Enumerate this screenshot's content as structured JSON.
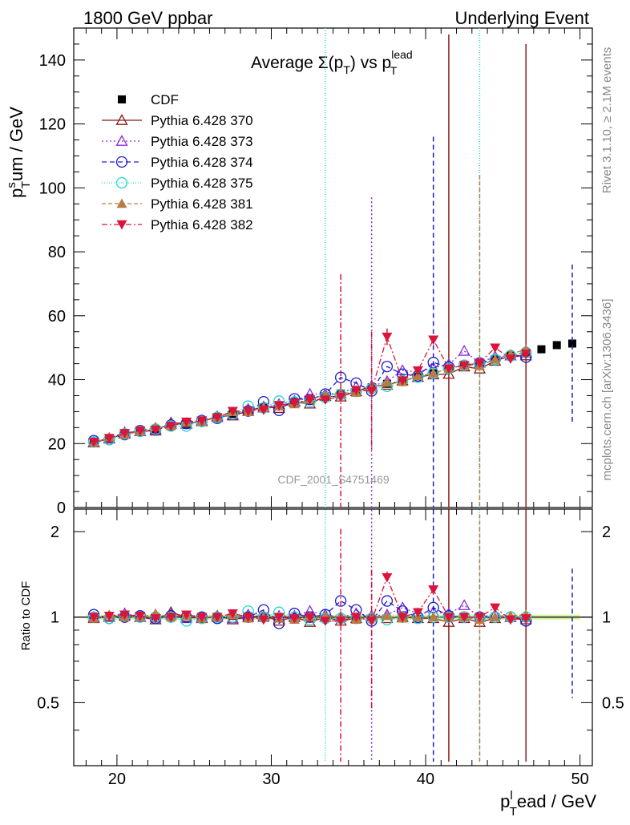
{
  "header": {
    "left": "1800 GeV ppbar",
    "right": "Underlying Event",
    "title_main": "Average Σ(p",
    "title_sub": "T",
    "title_mid": ") vs p",
    "title_sup": "lead",
    "title_sub2": "T"
  },
  "side": {
    "rivet": "Rivet 3.1.10, ≥ 2.1M events",
    "mcplots": "mcplots.cern.ch [arXiv:1306.3436]"
  },
  "watermark": "CDF_2001_S4751469",
  "axes": {
    "ylabel_main_base": "p",
    "ylabel_main_sup": "s",
    "ylabel_main_sub": "T",
    "ylabel_main_rest": "um / GeV",
    "ylabel_ratio": "Ratio to CDF",
    "xlabel_base": "p",
    "xlabel_sup": "l",
    "xlabel_sub": "T",
    "xlabel_rest": "ead / GeV"
  },
  "colors": {
    "cdf": "#000000",
    "p370": "#8b1a1a",
    "p373": "#8a2be2",
    "p374": "#1c1ccc",
    "p375": "#20d8c8",
    "p381": "#b87d44",
    "p382": "#dc143c",
    "band": "#c8f078"
  },
  "chart_data": {
    "type": "scatter",
    "main": {
      "xlim": [
        17.2,
        50.8
      ],
      "ylim": [
        0,
        150
      ],
      "x_ticks": [
        20,
        30,
        40,
        50
      ],
      "y_ticks": [
        0,
        20,
        40,
        60,
        80,
        100,
        120,
        140
      ]
    },
    "ratio": {
      "ylim": [
        0.3,
        2.4
      ],
      "y_ticks": [
        0.5,
        1,
        2
      ],
      "y_tick_labels": [
        "0.5",
        "1",
        "2"
      ]
    },
    "x": [
      18.5,
      19.5,
      20.5,
      21.5,
      22.5,
      23.5,
      24.5,
      25.5,
      26.5,
      27.5,
      28.5,
      29.5,
      30.5,
      31.5,
      32.5,
      33.5,
      34.5,
      35.5,
      36.5,
      37.5,
      38.5,
      39.5,
      40.5,
      41.5,
      42.5,
      43.5,
      44.5,
      45.5,
      46.5,
      47.5,
      48.5,
      49.5
    ],
    "series": [
      {
        "name": "CDF",
        "key": "cdf",
        "style": "data",
        "values": [
          20.5,
          21.5,
          22.8,
          23.8,
          24.5,
          25.5,
          26.3,
          27.2,
          28.2,
          29.3,
          30.2,
          31.2,
          32.0,
          33.0,
          33.8,
          34.8,
          35.7,
          36.7,
          37.6,
          38.7,
          39.7,
          41.2,
          42.0,
          43.5,
          44.5,
          45.2,
          46.3,
          47.5,
          48.5,
          49.5,
          50.8,
          51.3
        ]
      },
      {
        "name": "Pythia 6.428 370",
        "key": "p370",
        "marker": "triangle-open",
        "dash": "",
        "ratio": [
          0.99,
          1.0,
          1.01,
          1.0,
          0.98,
          1.04,
          1.0,
          0.99,
          1.01,
          0.98,
          1.0,
          1.01,
          0.97,
          1.0,
          0.96,
          1.0,
          0.97,
          0.99,
          1.01,
          0.99,
          1.0,
          0.99,
          0.99,
          0.96,
          0.99,
          0.96,
          0.99,
          1.0,
          0.98
        ],
        "bars": [
          [
            41.5,
            148
          ],
          [
            46.5,
            145
          ]
        ]
      },
      {
        "name": "Pythia 6.428 373",
        "key": "p373",
        "marker": "triangle-open",
        "dash": "2,3",
        "ratio": [
          1.0,
          1.01,
          1.03,
          1.0,
          1.0,
          1.02,
          0.99,
          1.0,
          1.0,
          0.99,
          1.02,
          1.0,
          1.01,
          1.01,
          1.05,
          1.02,
          1.0,
          1.03,
          1.01,
          1.02,
          1.08,
          1.03,
          1.04,
          1.03,
          1.1,
          1.0,
          1.02,
          1.0,
          1.0
        ],
        "bars": [
          [
            36.5,
            97
          ]
        ]
      },
      {
        "name": "Pythia 6.428 374",
        "key": "p374",
        "marker": "circle-open",
        "dash": "6,4",
        "ratio": [
          1.02,
          0.99,
          1.0,
          1.01,
          0.99,
          1.01,
          1.0,
          1.0,
          0.99,
          1.0,
          1.0,
          1.06,
          0.95,
          1.03,
          1.0,
          1.02,
          1.14,
          1.06,
          0.97,
          1.14,
          1.05,
          1.0,
          1.08,
          1.01,
          1.0,
          1.0,
          1.0,
          1.0,
          0.97
        ],
        "bars": [
          [
            40.5,
            116
          ],
          [
            49.5,
            76
          ]
        ]
      },
      {
        "name": "Pythia 6.428 375",
        "key": "p375",
        "marker": "circle-open",
        "dash": "1,2",
        "ratio": [
          1.0,
          0.99,
          1.01,
          1.0,
          1.0,
          1.0,
          0.97,
          0.99,
          1.0,
          1.0,
          1.05,
          1.0,
          1.04,
          1.0,
          0.98,
          0.99,
          0.99,
          0.99,
          0.99,
          0.98,
          1.0,
          0.99,
          1.0,
          1.0,
          1.0,
          0.99,
          1.0,
          1.0,
          1.0
        ],
        "bars": [
          [
            33.5,
            150
          ],
          [
            43.5,
            150
          ]
        ]
      },
      {
        "name": "Pythia 6.428 381",
        "key": "p381",
        "marker": "triangle-filled",
        "dash": "5,3",
        "ratio": [
          0.99,
          1.02,
          1.0,
          1.0,
          1.03,
          1.0,
          1.01,
          0.99,
          1.0,
          1.02,
          0.99,
          1.0,
          0.99,
          0.98,
          1.0,
          1.01,
          1.0,
          0.98,
          1.0,
          1.01,
          0.99,
          1.0,
          1.0,
          1.0,
          1.0,
          0.98,
          1.0,
          1.01,
          1.02
        ],
        "bars": [
          [
            43.5,
            104
          ]
        ]
      },
      {
        "name": "Pythia 6.428 382",
        "key": "p382",
        "marker": "triangle-down-filled",
        "dash": "7,3,2,3",
        "ratio": [
          1.0,
          1.01,
          1.02,
          1.01,
          0.99,
          1.0,
          1.02,
          1.0,
          1.0,
          1.03,
          1.0,
          0.98,
          1.0,
          0.99,
          1.0,
          0.97,
          0.97,
          1.0,
          0.97,
          1.38,
          1.0,
          1.04,
          1.25,
          1.0,
          1.0,
          1.0,
          1.08,
          0.98,
          0.99
        ],
        "bars": [
          [
            34.5,
            73
          ],
          [
            36.5,
            55
          ],
          [
            37.5,
            56
          ]
        ]
      }
    ]
  }
}
